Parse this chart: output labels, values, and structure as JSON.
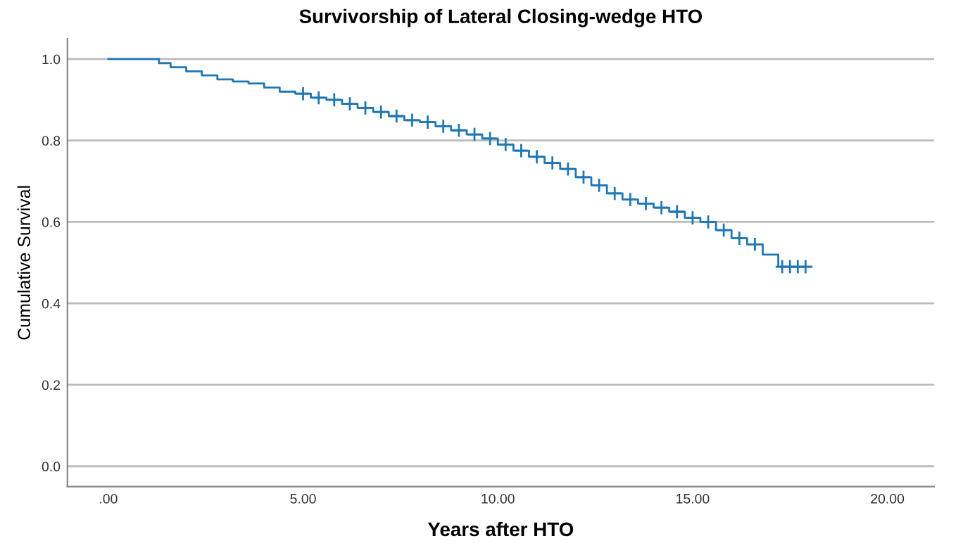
{
  "chart_data": {
    "type": "step",
    "title": "Survivorship of Lateral Closing-wedge HTO",
    "xlabel": "Years after HTO",
    "ylabel": "Cumulative Survival",
    "series": [
      {
        "color": "#1f77b4",
        "x": [
          0,
          1.3,
          1.6,
          2.0,
          2.4,
          2.8,
          3.2,
          3.6,
          4.0,
          4.4,
          4.8,
          5.2,
          5.6,
          6.0,
          6.4,
          6.8,
          7.2,
          7.6,
          8.0,
          8.4,
          8.8,
          9.2,
          9.6,
          10.0,
          10.4,
          10.8,
          11.2,
          11.6,
          12.0,
          12.4,
          12.8,
          13.2,
          13.6,
          14.0,
          14.4,
          14.8,
          15.2,
          15.6,
          16.0,
          16.4,
          16.8,
          17.2,
          18.05
        ],
        "values": [
          1.0,
          0.99,
          0.98,
          0.97,
          0.96,
          0.95,
          0.945,
          0.94,
          0.93,
          0.92,
          0.915,
          0.905,
          0.9,
          0.89,
          0.88,
          0.87,
          0.86,
          0.85,
          0.845,
          0.835,
          0.825,
          0.815,
          0.805,
          0.79,
          0.775,
          0.76,
          0.745,
          0.73,
          0.71,
          0.69,
          0.67,
          0.655,
          0.645,
          0.635,
          0.625,
          0.61,
          0.6,
          0.58,
          0.56,
          0.545,
          0.52,
          0.49,
          0.49
        ]
      },
      {
        "type": "scatter",
        "color": "#1f77b4",
        "marker": "cross",
        "x": [
          5.0,
          5.4,
          5.8,
          6.2,
          6.6,
          7.0,
          7.4,
          7.8,
          8.2,
          8.6,
          9.0,
          9.4,
          9.8,
          10.2,
          10.6,
          11.0,
          11.4,
          11.8,
          12.2,
          12.6,
          13.0,
          13.4,
          13.8,
          14.2,
          14.6,
          15.0,
          15.4,
          15.8,
          16.2,
          16.6,
          17.3,
          17.5,
          17.7,
          17.9
        ],
        "values": [
          0.915,
          0.905,
          0.9,
          0.89,
          0.88,
          0.87,
          0.86,
          0.85,
          0.845,
          0.835,
          0.825,
          0.815,
          0.805,
          0.79,
          0.775,
          0.76,
          0.745,
          0.73,
          0.71,
          0.69,
          0.67,
          0.655,
          0.645,
          0.635,
          0.625,
          0.61,
          0.6,
          0.58,
          0.56,
          0.545,
          0.49,
          0.49,
          0.49,
          0.49
        ]
      }
    ],
    "xlim": [
      -1.05,
      21.2
    ],
    "ylim": [
      -0.05,
      1.05
    ],
    "xticks": [
      {
        "value": 0,
        "label": ".00"
      },
      {
        "value": 5,
        "label": "5.00"
      },
      {
        "value": 10,
        "label": "10.00"
      },
      {
        "value": 15,
        "label": "15.00"
      },
      {
        "value": 20,
        "label": "20.00"
      }
    ],
    "yticks": [
      {
        "value": 0,
        "label": "0.0"
      },
      {
        "value": 0.2,
        "label": "0.2"
      },
      {
        "value": 0.4,
        "label": "0.4"
      },
      {
        "value": 0.6,
        "label": "0.6"
      },
      {
        "value": 0.8,
        "label": "0.8"
      },
      {
        "value": 1.0,
        "label": "1.0"
      }
    ],
    "grid": "y"
  }
}
